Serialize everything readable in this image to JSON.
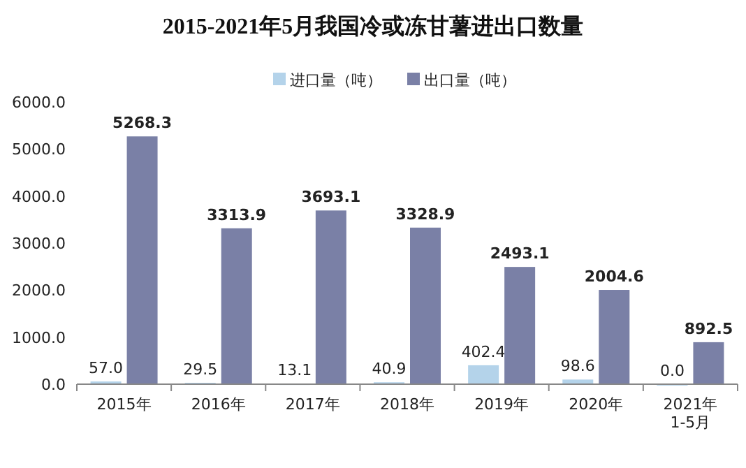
{
  "chart_data": {
    "type": "bar",
    "title": "2015-2021年5月我国冷或冻甘薯进出口数量",
    "categories": [
      "2015年",
      "2016年",
      "2017年",
      "2018年",
      "2019年",
      "2020年",
      "2021年1-5月"
    ],
    "series": [
      {
        "name": "进口量（吨）",
        "color": "#b4d3ea",
        "values": [
          57.0,
          29.5,
          13.1,
          40.9,
          402.4,
          98.6,
          0.0
        ],
        "value_labels": [
          "57.0",
          "29.5",
          "13.1",
          "40.9",
          "402.4",
          "98.6",
          "0.0"
        ]
      },
      {
        "name": "出口量（吨）",
        "color": "#7a80a6",
        "values": [
          5268.3,
          3313.9,
          3693.1,
          3328.9,
          2493.1,
          2004.6,
          892.5
        ],
        "value_labels": [
          "5268.3",
          "3313.9",
          "3693.1",
          "3328.9",
          "2493.1",
          "2004.6",
          "892.5"
        ]
      }
    ],
    "ylim": [
      0,
      6000
    ],
    "yticks": [
      {
        "value": 0,
        "label": "0.0"
      },
      {
        "value": 1000,
        "label": "1000.0"
      },
      {
        "value": 2000,
        "label": "2000.0"
      },
      {
        "value": 3000,
        "label": "3000.0"
      },
      {
        "value": 4000,
        "label": "4000.0"
      },
      {
        "value": 5000,
        "label": "5000.0"
      },
      {
        "value": 6000,
        "label": "6000.0"
      }
    ],
    "legend": "top"
  }
}
